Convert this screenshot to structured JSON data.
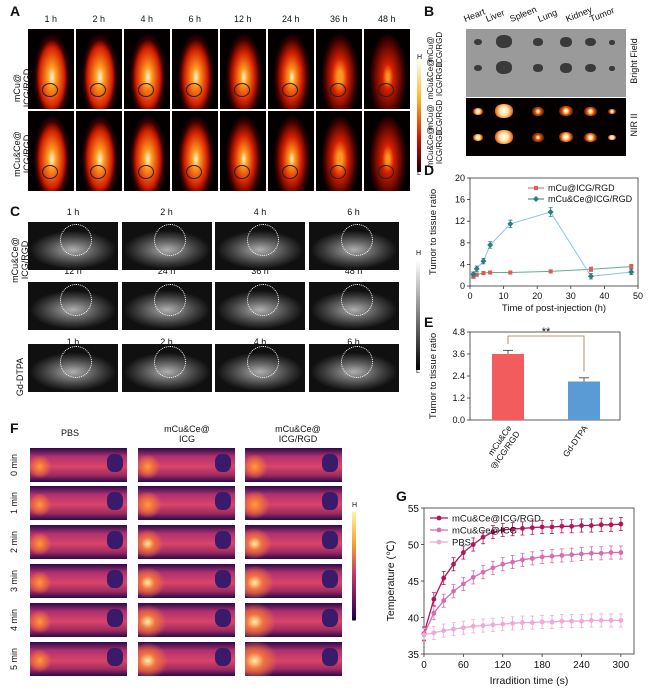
{
  "panels": {
    "a": "A",
    "b": "B",
    "c": "C",
    "d": "D",
    "e": "E",
    "f": "F",
    "g": "G"
  },
  "fig_a": {
    "times": [
      "1 h",
      "2 h",
      "4 h",
      "6 h",
      "12 h",
      "24 h",
      "36 h",
      "48 h"
    ],
    "rows": [
      {
        "line1": "mCu@",
        "line2": "ICG/RGD"
      },
      {
        "line1": "mCu&Ce@",
        "line2": "ICG/RGD"
      }
    ],
    "colorbar": {
      "high": "H",
      "low": "L"
    }
  },
  "fig_b": {
    "organs": [
      "Heart",
      "Liver",
      "Spleen",
      "Lung",
      "Kidney",
      "Tumor"
    ],
    "rows": [
      {
        "line1": "mCu@",
        "line2": "ICG/RGD"
      },
      {
        "line1": "mCu&Ce@",
        "line2": "ICG/RGD"
      },
      {
        "line1": "mCu@",
        "line2": "ICG/RGD"
      },
      {
        "line1": "mCu&Ce@",
        "line2": "ICG/RGD"
      }
    ],
    "side_labels": [
      "Bright Field",
      "NIR II"
    ]
  },
  "fig_c": {
    "times_top": [
      "1 h",
      "2 h",
      "4 h",
      "6 h"
    ],
    "times_mid": [
      "12 h",
      "24 h",
      "36 h",
      "48 h"
    ],
    "times_bot": [
      "1 h",
      "2 h",
      "4 h",
      "6 h"
    ],
    "group1": {
      "line1": "mCu&Ce@",
      "line2": "ICG/RGD"
    },
    "group2": "Gd-DTPA",
    "colorbar": {
      "high": "H",
      "low": "L"
    }
  },
  "fig_f": {
    "columns": [
      {
        "line1": "PBS",
        "line2": ""
      },
      {
        "line1": "mCu&Ce@",
        "line2": "ICG"
      },
      {
        "line1": "mCu&Ce@",
        "line2": "ICG/RGD"
      }
    ],
    "rows": [
      "0 min",
      "1 min",
      "2 min",
      "3 min",
      "4 min",
      "5 min"
    ],
    "colorbar": {
      "high": "H",
      "low": "L"
    }
  },
  "chart_data": [
    {
      "id": "D",
      "type": "line",
      "xlabel": "Time of post-injection (h)",
      "ylabel": "Tumor to tissue ratio",
      "xlim": [
        0,
        50
      ],
      "ylim": [
        0,
        20
      ],
      "xticks": [
        "0",
        "10",
        "20",
        "30",
        "40",
        "50"
      ],
      "yticks": [
        "0",
        "4",
        "8",
        "12",
        "16",
        "20"
      ],
      "legend_position": "top-right",
      "series": [
        {
          "name": "mCu@ICG/RGD",
          "color": "#e05a5a",
          "marker": "square",
          "x": [
            1,
            2,
            4,
            6,
            12,
            24,
            36,
            48
          ],
          "y": [
            1.7,
            2.1,
            2.4,
            2.5,
            2.5,
            2.7,
            3.1,
            3.6
          ],
          "err": [
            0.3,
            0.3,
            0.3,
            0.3,
            0.3,
            0.3,
            0.4,
            0.4
          ]
        },
        {
          "name": "mCu&Ce@ICG/RGD",
          "color": "#2e7d7d",
          "marker": "diamond",
          "x": [
            1,
            2,
            4,
            6,
            12,
            24,
            36,
            48
          ],
          "y": [
            2.2,
            3.2,
            4.6,
            7.6,
            11.5,
            13.7,
            1.8,
            2.6
          ],
          "err": [
            0.4,
            0.5,
            0.5,
            0.6,
            0.7,
            0.8,
            0.5,
            0.5
          ]
        }
      ]
    },
    {
      "id": "E",
      "type": "bar",
      "ylabel": "Tumor to tissue ratio",
      "ylim": [
        0,
        4.8
      ],
      "yticks": [
        "0.0",
        "1.2",
        "2.4",
        "3.6",
        "4.8"
      ],
      "categories": [
        {
          "line1": "mCu&Ce",
          "line2": "@ICG/RGD"
        },
        {
          "line1": "Gd-DTPA",
          "line2": ""
        }
      ],
      "values": [
        3.6,
        2.1
      ],
      "err": [
        0.2,
        0.2
      ],
      "colors": [
        "#f25c5c",
        "#5b9bd5"
      ],
      "annotation": "**"
    },
    {
      "id": "G",
      "type": "line",
      "xlabel": "Irradition time (s)",
      "ylabel": "Temperature (℃)",
      "xlim": [
        0,
        320
      ],
      "ylim": [
        35,
        55
      ],
      "xticks": [
        "0",
        "60",
        "120",
        "180",
        "240",
        "300"
      ],
      "yticks": [
        "35",
        "40",
        "45",
        "50",
        "55"
      ],
      "legend_position": "top-left",
      "series": [
        {
          "name": "mCu&Ce@ICG/RGD",
          "color": "#b5135a",
          "x": [
            0,
            15,
            30,
            45,
            60,
            75,
            90,
            105,
            120,
            135,
            150,
            165,
            180,
            195,
            210,
            225,
            240,
            255,
            270,
            285,
            300
          ],
          "y": [
            37.8,
            42.5,
            45.4,
            47.3,
            48.9,
            50.0,
            51.0,
            51.7,
            52.0,
            52.1,
            52.2,
            52.3,
            52.4,
            52.4,
            52.5,
            52.5,
            52.6,
            52.6,
            52.7,
            52.7,
            52.8
          ]
        },
        {
          "name": "mCu&Ce@ICG",
          "color": "#d96bb0",
          "x": [
            0,
            15,
            30,
            45,
            60,
            75,
            90,
            105,
            120,
            135,
            150,
            165,
            180,
            195,
            210,
            225,
            240,
            255,
            270,
            285,
            300
          ],
          "y": [
            37.7,
            40.6,
            42.3,
            43.6,
            44.6,
            45.5,
            46.2,
            46.8,
            47.3,
            47.6,
            47.9,
            48.1,
            48.3,
            48.4,
            48.5,
            48.6,
            48.7,
            48.8,
            48.8,
            48.9,
            48.9
          ]
        },
        {
          "name": "PBS",
          "color": "#f0a8d6",
          "x": [
            0,
            15,
            30,
            45,
            60,
            75,
            90,
            105,
            120,
            135,
            150,
            165,
            180,
            195,
            210,
            225,
            240,
            255,
            270,
            285,
            300
          ],
          "y": [
            37.6,
            37.9,
            38.2,
            38.4,
            38.6,
            38.8,
            38.9,
            39.0,
            39.1,
            39.2,
            39.3,
            39.3,
            39.4,
            39.4,
            39.5,
            39.5,
            39.5,
            39.6,
            39.6,
            39.6,
            39.6
          ]
        }
      ]
    }
  ]
}
